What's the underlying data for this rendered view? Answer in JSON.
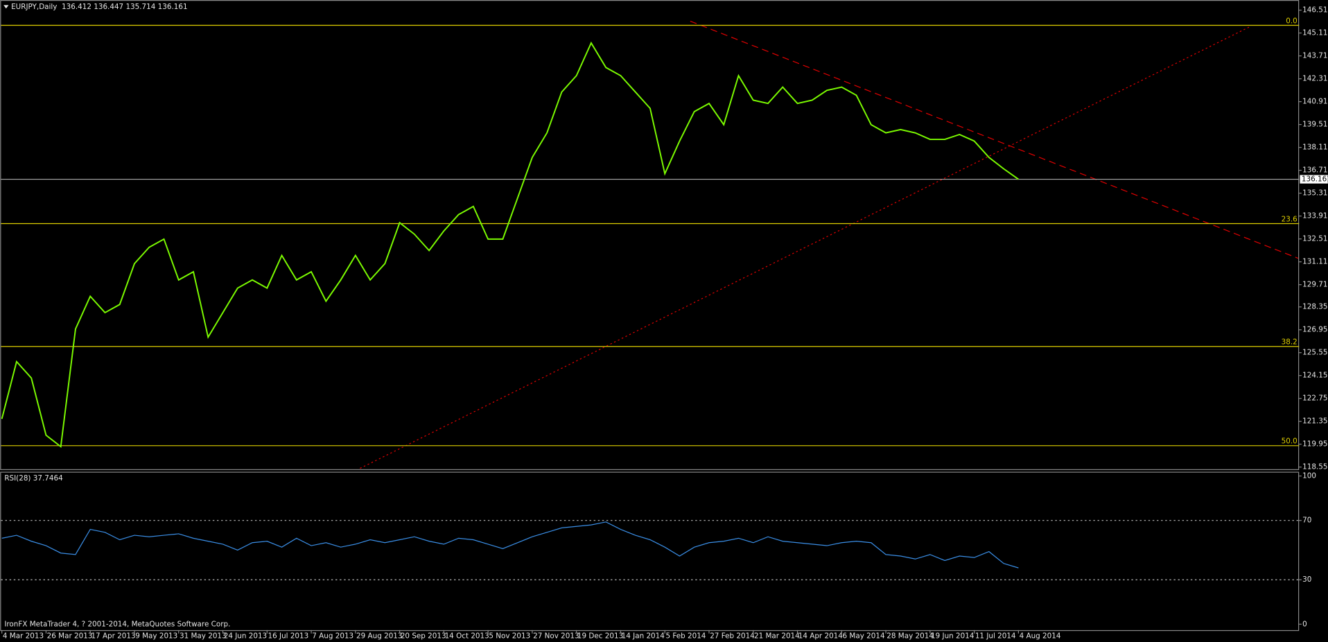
{
  "chart_data": [
    {
      "type": "line",
      "title": "EURJPY,Daily  136.412 136.447 135.714 136.161",
      "categories": [
        "4 Mar 2013",
        null,
        null,
        "26 Mar 2013",
        null,
        null,
        "17 Apr 2013",
        null,
        null,
        "9 May 2013",
        null,
        null,
        "31 May 2013",
        null,
        null,
        "24 Jun 2013",
        null,
        null,
        "16 Jul 2013",
        null,
        null,
        "7 Aug 2013",
        null,
        null,
        "29 Aug 2013",
        null,
        null,
        "20 Sep 2013",
        null,
        null,
        "14 Oct 2013",
        null,
        null,
        "5 Nov 2013",
        null,
        null,
        "27 Nov 2013",
        null,
        null,
        "19 Dec 2013",
        null,
        null,
        "14 Jan 2014",
        null,
        null,
        "5 Feb 2014",
        null,
        null,
        "27 Feb 2014",
        null,
        null,
        "21 Mar 2014",
        null,
        null,
        "14 Apr 2014",
        null,
        null,
        "6 May 2014",
        null,
        null,
        "28 May 2014",
        null,
        null,
        "19 Jun 2014",
        null,
        null,
        "11 Jul 2014",
        null,
        null,
        "4 Aug 2014"
      ],
      "series": [
        {
          "color": "#7cfc00",
          "values": [
            121.5,
            125.0,
            124.0,
            120.5,
            119.8,
            127.0,
            129.0,
            128.0,
            128.5,
            131.0,
            132.0,
            132.5,
            130.0,
            130.5,
            126.5,
            128.0,
            129.5,
            130.0,
            129.5,
            131.5,
            130.0,
            130.5,
            128.7,
            130.0,
            131.5,
            130.0,
            131.0,
            133.5,
            132.8,
            131.8,
            133.0,
            134.0,
            134.5,
            132.5,
            132.5,
            135.0,
            137.5,
            139.0,
            141.5,
            142.5,
            144.5,
            143.0,
            142.5,
            141.5,
            140.5,
            136.5,
            138.5,
            140.3,
            140.8,
            139.5,
            142.5,
            141.0,
            140.8,
            141.8,
            140.8,
            141.0,
            141.6,
            141.8,
            141.3,
            139.5,
            139.0,
            139.2,
            139.0,
            138.6,
            138.6,
            138.9,
            138.5,
            137.5,
            136.8,
            136.161
          ]
        }
      ],
      "ylim": [
        118.47,
        147.13
      ],
      "yticks": [
        {
          "value": 146.51,
          "label": "146.510"
        },
        {
          "value": 145.11,
          "label": "145.110"
        },
        {
          "value": 143.71,
          "label": "143.710"
        },
        {
          "value": 142.31,
          "label": "142.310"
        },
        {
          "value": 140.91,
          "label": "140.910"
        },
        {
          "value": 139.51,
          "label": "139.510"
        },
        {
          "value": 138.11,
          "label": "138.110"
        },
        {
          "value": 136.71,
          "label": "136.710"
        },
        {
          "value": 135.31,
          "label": "135.310"
        },
        {
          "value": 133.91,
          "label": "133.910"
        },
        {
          "value": 132.51,
          "label": "132.510"
        },
        {
          "value": 131.11,
          "label": "131.110"
        },
        {
          "value": 129.71,
          "label": "129.710"
        },
        {
          "value": 128.35,
          "label": "128.350"
        },
        {
          "value": 126.95,
          "label": "126.950"
        },
        {
          "value": 125.55,
          "label": "125.550"
        },
        {
          "value": 124.15,
          "label": "124.150"
        },
        {
          "value": 122.75,
          "label": "122.750"
        },
        {
          "value": 121.35,
          "label": "121.350"
        },
        {
          "value": 119.95,
          "label": "119.950"
        },
        {
          "value": 118.55,
          "label": "118.550"
        }
      ],
      "current_price": 136.161,
      "fibo_levels": [
        {
          "value": 145.58,
          "label": "0.0"
        },
        {
          "value": 133.45,
          "label": "23.6"
        },
        {
          "value": 125.93,
          "label": "38.2"
        },
        {
          "value": 119.86,
          "label": "50.0"
        }
      ]
    },
    {
      "type": "line",
      "title": "RSI(28) 37.7464",
      "series": [
        {
          "color": "#3a8ee6",
          "values": [
            58,
            60,
            56,
            53,
            48,
            47,
            64,
            62,
            57,
            60,
            59,
            60,
            61,
            58,
            56,
            54,
            50,
            55,
            56,
            52,
            58,
            53,
            55,
            52,
            54,
            57,
            55,
            57,
            59,
            56,
            54,
            58,
            57,
            54,
            51,
            55,
            59,
            62,
            65,
            66,
            67,
            69,
            64,
            60,
            57,
            52,
            46,
            52,
            55,
            56,
            58,
            55,
            59,
            56,
            55,
            54,
            53,
            55,
            56,
            55,
            47,
            46,
            44,
            47,
            43,
            46,
            45,
            49,
            41,
            38
          ]
        }
      ],
      "ylim": [
        0,
        100
      ],
      "yticks": [
        0,
        30,
        70,
        100
      ]
    }
  ],
  "footer": "IronFX MetaTrader 4, ? 2001-2014, MetaQuotes Software Corp."
}
